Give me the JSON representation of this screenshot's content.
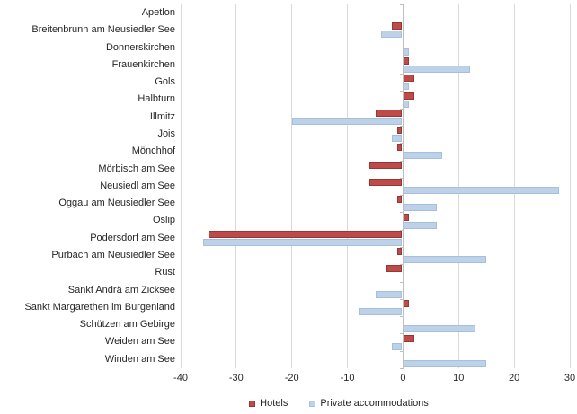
{
  "chart_data": {
    "type": "bar",
    "orientation": "horizontal",
    "title": "",
    "xlabel": "",
    "ylabel": "",
    "categories": [
      "Apetlon",
      "Breitenbrunn am Neusiedler See",
      "Donnerskirchen",
      "Frauenkirchen",
      "Gols",
      "Halbturn",
      "Illmitz",
      "Jois",
      "Mönchhof",
      "Mörbisch am See",
      "Neusiedl am See",
      "Oggau am Neusiedler See",
      "Oslip",
      "Podersdorf am See",
      "Purbach am Neusiedler See",
      "Rust",
      "Sankt Andrä am Zicksee",
      "Sankt Margarethen im Burgenland",
      "Schützen am Gebirge",
      "Weiden am See",
      "Winden am See"
    ],
    "series": [
      {
        "name": "Hotels",
        "color": "#be4b48",
        "border_color": "#953734",
        "values": [
          0,
          -2,
          0,
          1,
          2,
          2,
          -5,
          -1,
          -1,
          -6,
          -6,
          -1,
          1,
          -35,
          -1,
          -3,
          0,
          1,
          0,
          2,
          0
        ]
      },
      {
        "name": "Private accommodations",
        "color": "#bdd2e8",
        "border_color": "#a5bfdc",
        "values": [
          0,
          -4,
          1,
          12,
          1,
          1,
          -20,
          -2,
          7,
          0,
          28,
          6,
          6,
          -36,
          15,
          0,
          -5,
          -8,
          13,
          -2,
          15
        ]
      }
    ],
    "xlim": [
      -40,
      30
    ],
    "xticks": [
      -40,
      -30,
      -20,
      -10,
      0,
      10,
      20,
      30
    ],
    "grid": "vertical",
    "legend_position": "bottom-center",
    "colors": {
      "background": "#ffffff",
      "gridline": "#d9d9d9",
      "axis": "#bfbfbf",
      "text": "#262626"
    }
  }
}
